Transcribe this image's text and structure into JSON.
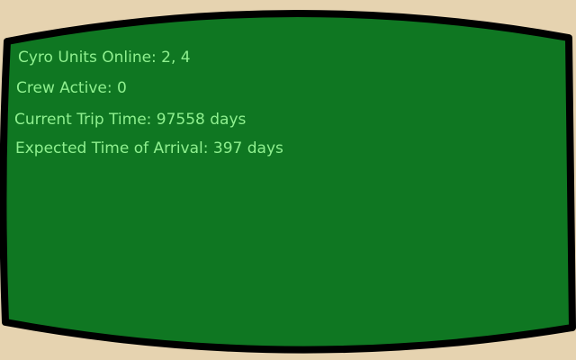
{
  "colors": {
    "background": "#e6d3b0",
    "screen": "#0f7722",
    "bezel": "#000000",
    "text": "#8ff08f"
  },
  "status": {
    "cryo_units": "Cyro Units Online: 2, 4",
    "crew_active": "Crew Active: 0",
    "trip_time": "Current Trip Time: 97558 days",
    "eta": "Expected Time of Arrival: 397 days"
  }
}
